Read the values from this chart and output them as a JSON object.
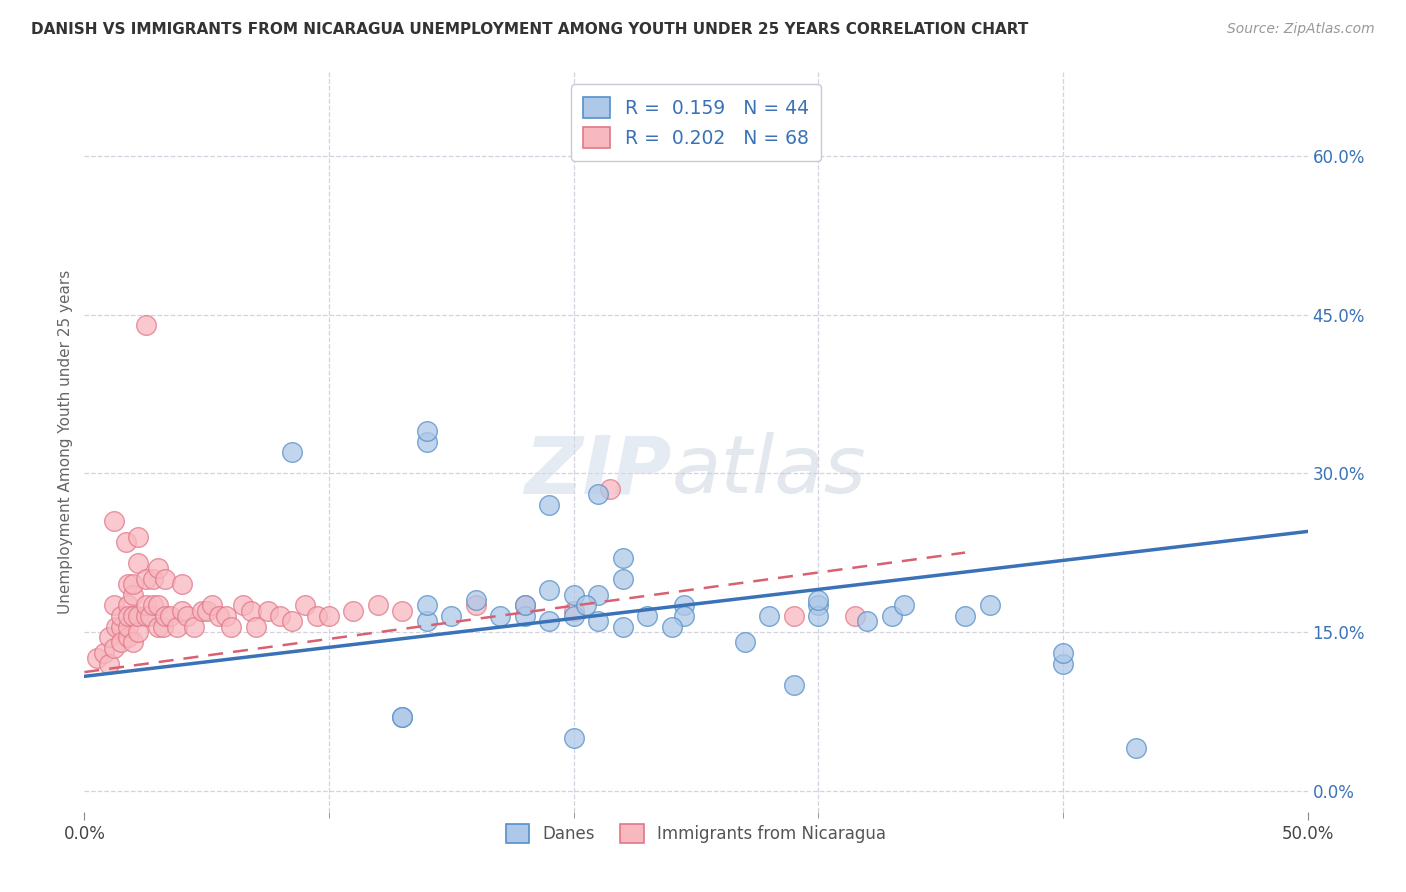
{
  "title": "DANISH VS IMMIGRANTS FROM NICARAGUA UNEMPLOYMENT AMONG YOUTH UNDER 25 YEARS CORRELATION CHART",
  "source": "Source: ZipAtlas.com",
  "ylabel": "Unemployment Among Youth under 25 years",
  "xlim": [
    0.0,
    0.5
  ],
  "ylim": [
    -0.02,
    0.68
  ],
  "yticks_right": [
    0.0,
    0.15,
    0.3,
    0.45,
    0.6
  ],
  "ytick_labels_right": [
    "0.0%",
    "15.0%",
    "30.0%",
    "45.0%",
    "60.0%"
  ],
  "xtick_positions": [
    0.0,
    0.5
  ],
  "xtick_labels": [
    "0.0%",
    "50.0%"
  ],
  "legend_blue": "R =  0.159   N = 44",
  "legend_pink": "R =  0.202   N = 68",
  "blue_scatter_face": "#adc8e8",
  "blue_scatter_edge": "#5590c8",
  "pink_scatter_face": "#f8b8c0",
  "pink_scatter_edge": "#e07888",
  "blue_line_color": "#3a72b8",
  "pink_line_color": "#d86070",
  "background_color": "#ffffff",
  "watermark": "ZIPatlas",
  "grid_color": "#c8c8d8",
  "legend_edge_color": "#c8c8d8",
  "legend_text_color": "#3a72b8",
  "blue_line_x": [
    0.0,
    0.5
  ],
  "blue_line_y": [
    0.108,
    0.245
  ],
  "pink_line_x": [
    0.0,
    0.36
  ],
  "pink_line_y": [
    0.112,
    0.225
  ],
  "danes_x": [
    0.21,
    0.085,
    0.14,
    0.14,
    0.19,
    0.19,
    0.2,
    0.21,
    0.22,
    0.22,
    0.14,
    0.14,
    0.15,
    0.16,
    0.17,
    0.18,
    0.18,
    0.19,
    0.2,
    0.205,
    0.23,
    0.245,
    0.245,
    0.28,
    0.3,
    0.3,
    0.3,
    0.32,
    0.33,
    0.335,
    0.36,
    0.37,
    0.4,
    0.4,
    0.43,
    0.21,
    0.22,
    0.24,
    0.27,
    0.29,
    0.13,
    0.13,
    0.2,
    0.21
  ],
  "danes_y": [
    0.61,
    0.32,
    0.33,
    0.34,
    0.27,
    0.19,
    0.185,
    0.185,
    0.2,
    0.22,
    0.16,
    0.175,
    0.165,
    0.18,
    0.165,
    0.165,
    0.175,
    0.16,
    0.165,
    0.175,
    0.165,
    0.175,
    0.165,
    0.165,
    0.175,
    0.165,
    0.18,
    0.16,
    0.165,
    0.175,
    0.165,
    0.175,
    0.12,
    0.13,
    0.04,
    0.16,
    0.155,
    0.155,
    0.14,
    0.1,
    0.07,
    0.07,
    0.05,
    0.28
  ],
  "nicaragua_x": [
    0.005,
    0.008,
    0.01,
    0.01,
    0.012,
    0.012,
    0.013,
    0.015,
    0.015,
    0.015,
    0.018,
    0.018,
    0.018,
    0.018,
    0.018,
    0.02,
    0.02,
    0.02,
    0.02,
    0.022,
    0.022,
    0.022,
    0.025,
    0.025,
    0.025,
    0.027,
    0.028,
    0.028,
    0.03,
    0.03,
    0.03,
    0.032,
    0.033,
    0.033,
    0.035,
    0.038,
    0.04,
    0.04,
    0.042,
    0.045,
    0.048,
    0.05,
    0.052,
    0.055,
    0.058,
    0.06,
    0.065,
    0.068,
    0.07,
    0.075,
    0.08,
    0.085,
    0.09,
    0.095,
    0.1,
    0.11,
    0.12,
    0.13,
    0.16,
    0.18,
    0.2,
    0.215,
    0.29,
    0.315,
    0.012,
    0.017,
    0.022,
    0.025
  ],
  "nicaragua_y": [
    0.125,
    0.13,
    0.145,
    0.12,
    0.135,
    0.175,
    0.155,
    0.155,
    0.165,
    0.14,
    0.145,
    0.155,
    0.175,
    0.165,
    0.195,
    0.14,
    0.165,
    0.185,
    0.195,
    0.15,
    0.165,
    0.215,
    0.165,
    0.175,
    0.2,
    0.165,
    0.175,
    0.2,
    0.155,
    0.175,
    0.21,
    0.155,
    0.165,
    0.2,
    0.165,
    0.155,
    0.17,
    0.195,
    0.165,
    0.155,
    0.17,
    0.17,
    0.175,
    0.165,
    0.165,
    0.155,
    0.175,
    0.17,
    0.155,
    0.17,
    0.165,
    0.16,
    0.175,
    0.165,
    0.165,
    0.17,
    0.175,
    0.17,
    0.175,
    0.175,
    0.17,
    0.285,
    0.165,
    0.165,
    0.255,
    0.235,
    0.24,
    0.44
  ]
}
